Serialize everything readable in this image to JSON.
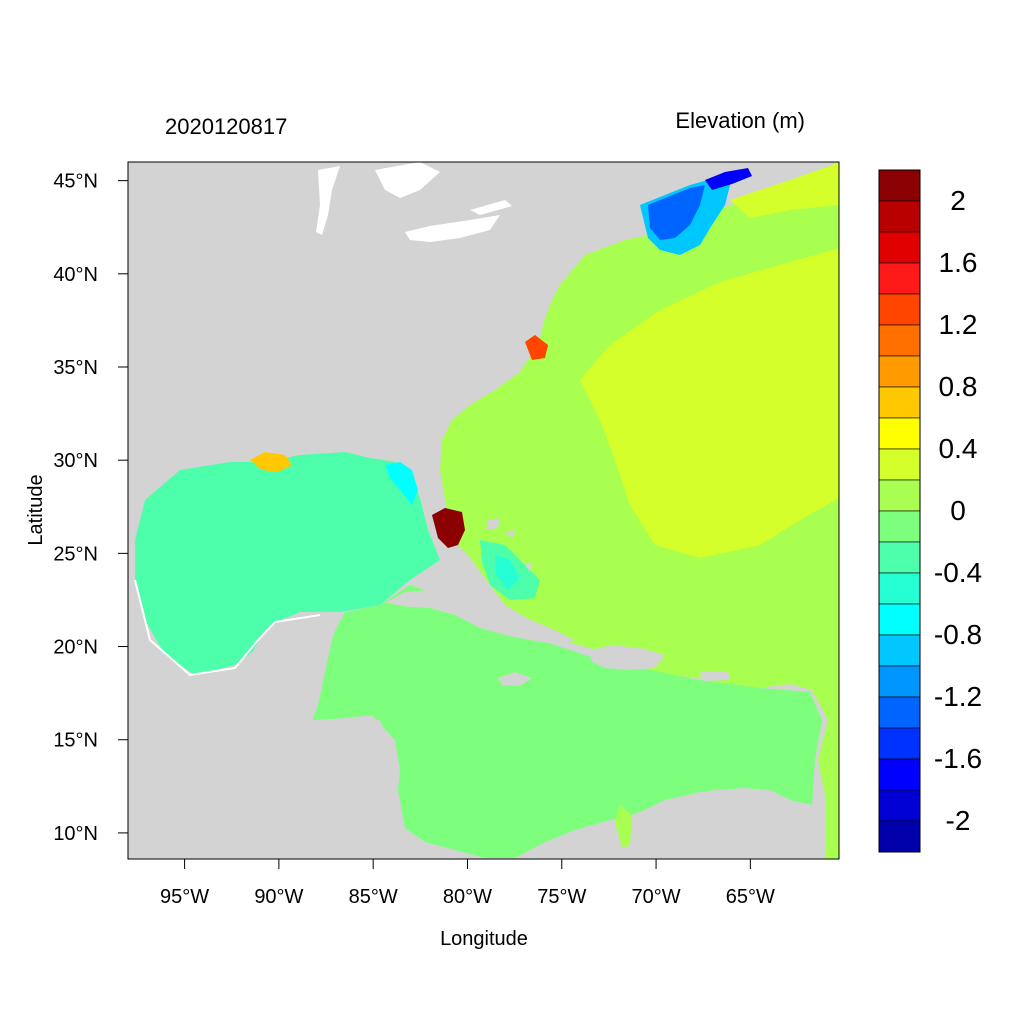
{
  "map": {
    "datetime_label": "2020120817",
    "variable_label": "Elevation (m)",
    "x_axis_label": "Longitude",
    "y_axis_label": "Latitude",
    "lon_range": [
      -98,
      -60.3
    ],
    "lat_range": [
      8.6,
      46
    ],
    "lon_ticks": [
      {
        "value": -95,
        "label": "95°W"
      },
      {
        "value": -90,
        "label": "90°W"
      },
      {
        "value": -85,
        "label": "85°W"
      },
      {
        "value": -80,
        "label": "80°W"
      },
      {
        "value": -75,
        "label": "75°W"
      },
      {
        "value": -70,
        "label": "70°W"
      },
      {
        "value": -65,
        "label": "65°W"
      }
    ],
    "lat_ticks": [
      {
        "value": 45,
        "label": "45°N"
      },
      {
        "value": 40,
        "label": "40°N"
      },
      {
        "value": 35,
        "label": "35°N"
      },
      {
        "value": 30,
        "label": "30°N"
      },
      {
        "value": 25,
        "label": "25°N"
      },
      {
        "value": 20,
        "label": "20°N"
      },
      {
        "value": 15,
        "label": "15°N"
      },
      {
        "value": 10,
        "label": "10°N"
      }
    ],
    "colors": {
      "land": "#d3d3d3",
      "atlantic_base": "#a8ff50",
      "caribbean": "#7dff7d",
      "gulf_of_mexico": "#4dffaa",
      "high_anomaly": "#d4ff2a",
      "outline": "#000000"
    },
    "colorbar": {
      "levels": [
        {
          "color": "#8b0000"
        },
        {
          "color": "#b80000"
        },
        {
          "color": "#e00000"
        },
        {
          "color": "#ff1a1a"
        },
        {
          "color": "#ff4500"
        },
        {
          "color": "#ff7000"
        },
        {
          "color": "#ff9b00"
        },
        {
          "color": "#ffc800"
        },
        {
          "color": "#ffff00"
        },
        {
          "color": "#d4ff2a"
        },
        {
          "color": "#a8ff50"
        },
        {
          "color": "#7dff7d"
        },
        {
          "color": "#4dffaa"
        },
        {
          "color": "#26ffd4"
        },
        {
          "color": "#00ffff"
        },
        {
          "color": "#00c8ff"
        },
        {
          "color": "#0096ff"
        },
        {
          "color": "#0064ff"
        },
        {
          "color": "#0032ff"
        },
        {
          "color": "#0000ff"
        },
        {
          "color": "#0000d4"
        },
        {
          "color": "#0000aa"
        }
      ],
      "labels": [
        "2",
        "1.6",
        "1.2",
        "0.8",
        "0.4",
        "0",
        "-0.4",
        "-0.8",
        "-1.2",
        "-1.6",
        "-2"
      ]
    }
  }
}
